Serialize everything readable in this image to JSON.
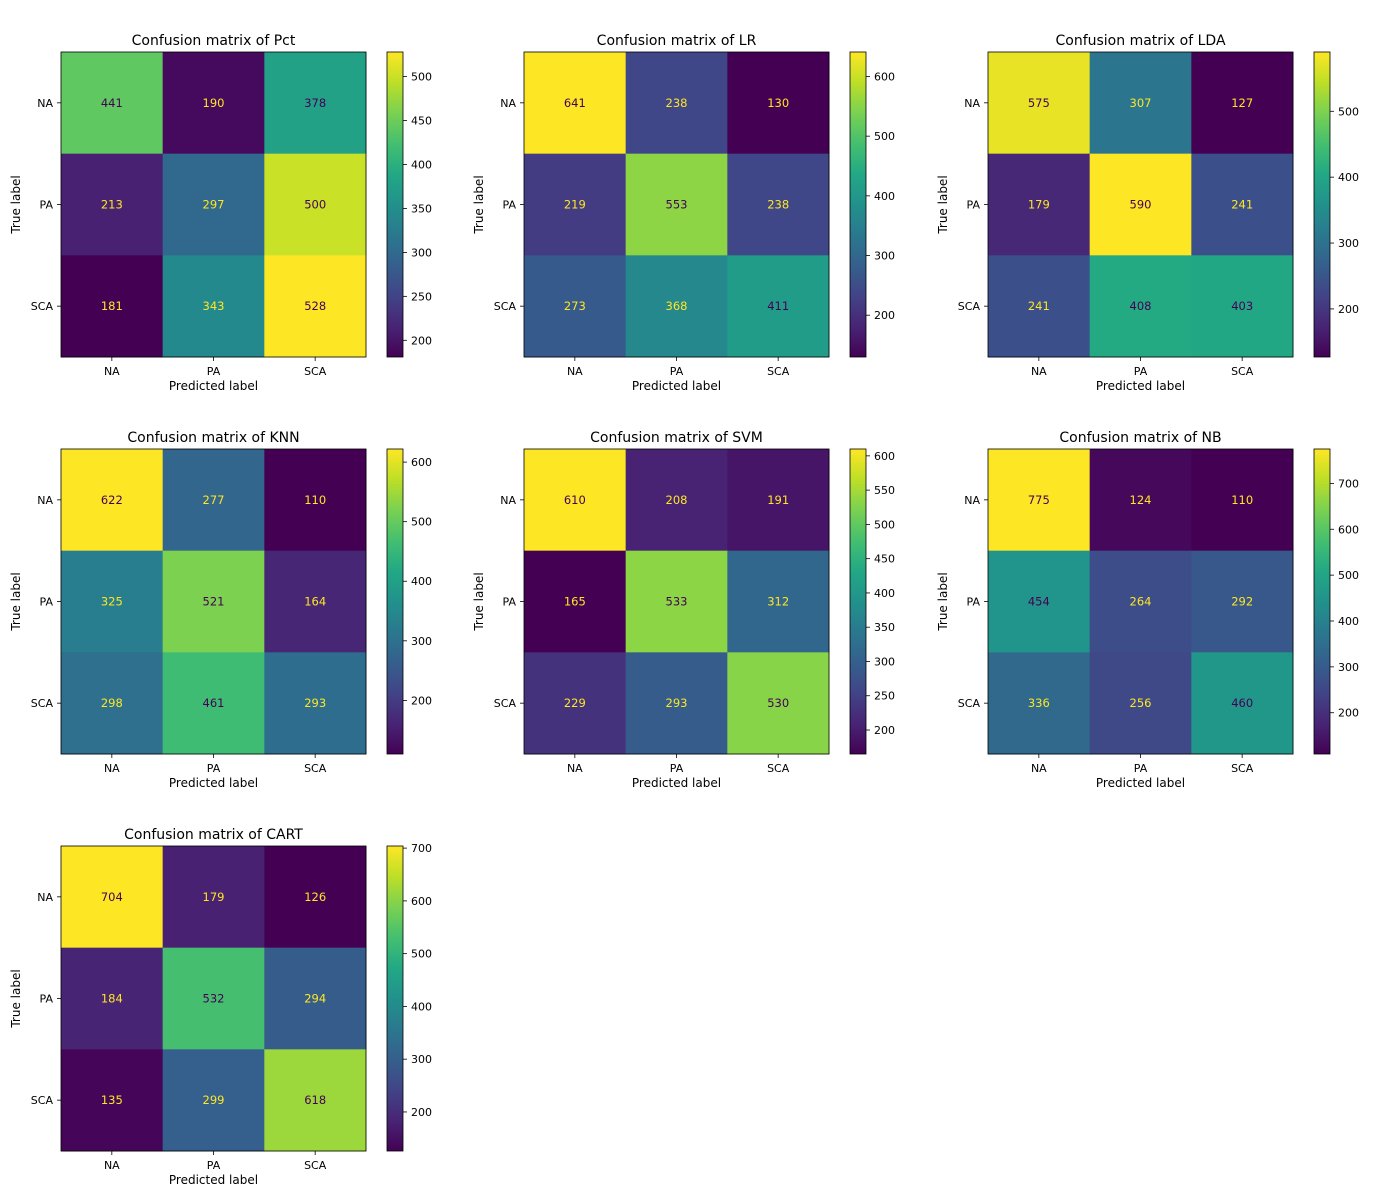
{
  "colormap": {
    "name": "viridis",
    "low_text_color": "#fde725",
    "high_text_color": "#440154"
  },
  "chart_data": [
    {
      "type": "heatmap",
      "title": "Confusion matrix of Pct",
      "xlabel": "Predicted label",
      "ylabel": "True label",
      "x_categories": [
        "NA",
        "PA",
        "SCA"
      ],
      "y_categories": [
        "NA",
        "PA",
        "SCA"
      ],
      "values": [
        [
          441,
          190,
          378
        ],
        [
          213,
          297,
          500
        ],
        [
          181,
          343,
          528
        ]
      ],
      "colorbar_range": [
        181,
        528
      ],
      "colorbar_ticks": [
        200,
        250,
        300,
        350,
        400,
        450,
        500
      ]
    },
    {
      "type": "heatmap",
      "title": "Confusion matrix of LR",
      "xlabel": "Predicted label",
      "ylabel": "True label",
      "x_categories": [
        "NA",
        "PA",
        "SCA"
      ],
      "y_categories": [
        "NA",
        "PA",
        "SCA"
      ],
      "values": [
        [
          641,
          238,
          130
        ],
        [
          219,
          553,
          238
        ],
        [
          273,
          368,
          411
        ]
      ],
      "colorbar_range": [
        130,
        641
      ],
      "colorbar_ticks": [
        200,
        300,
        400,
        500,
        600
      ]
    },
    {
      "type": "heatmap",
      "title": "Confusion matrix of LDA",
      "xlabel": "Predicted label",
      "ylabel": "True label",
      "x_categories": [
        "NA",
        "PA",
        "SCA"
      ],
      "y_categories": [
        "NA",
        "PA",
        "SCA"
      ],
      "values": [
        [
          575,
          307,
          127
        ],
        [
          179,
          590,
          241
        ],
        [
          241,
          408,
          403
        ]
      ],
      "colorbar_range": [
        127,
        590
      ],
      "colorbar_ticks": [
        200,
        300,
        400,
        500
      ]
    },
    {
      "type": "heatmap",
      "title": "Confusion matrix of KNN",
      "xlabel": "Predicted label",
      "ylabel": "True label",
      "x_categories": [
        "NA",
        "PA",
        "SCA"
      ],
      "y_categories": [
        "NA",
        "PA",
        "SCA"
      ],
      "values": [
        [
          622,
          277,
          110
        ],
        [
          325,
          521,
          164
        ],
        [
          298,
          461,
          293
        ]
      ],
      "colorbar_range": [
        110,
        622
      ],
      "colorbar_ticks": [
        200,
        300,
        400,
        500,
        600
      ]
    },
    {
      "type": "heatmap",
      "title": "Confusion matrix of SVM",
      "xlabel": "Predicted label",
      "ylabel": "True label",
      "x_categories": [
        "NA",
        "PA",
        "SCA"
      ],
      "y_categories": [
        "NA",
        "PA",
        "SCA"
      ],
      "values": [
        [
          610,
          208,
          191
        ],
        [
          165,
          533,
          312
        ],
        [
          229,
          293,
          530
        ]
      ],
      "colorbar_range": [
        165,
        610
      ],
      "colorbar_ticks": [
        200,
        250,
        300,
        350,
        400,
        450,
        500,
        550,
        600
      ]
    },
    {
      "type": "heatmap",
      "title": "Confusion matrix of NB",
      "xlabel": "Predicted label",
      "ylabel": "True label",
      "x_categories": [
        "NA",
        "PA",
        "SCA"
      ],
      "y_categories": [
        "NA",
        "PA",
        "SCA"
      ],
      "values": [
        [
          775,
          124,
          110
        ],
        [
          454,
          264,
          292
        ],
        [
          336,
          256,
          460
        ]
      ],
      "colorbar_range": [
        110,
        775
      ],
      "colorbar_ticks": [
        200,
        300,
        400,
        500,
        600,
        700
      ]
    },
    {
      "type": "heatmap",
      "title": "Confusion matrix of CART",
      "xlabel": "Predicted label",
      "ylabel": "True label",
      "x_categories": [
        "NA",
        "PA",
        "SCA"
      ],
      "y_categories": [
        "NA",
        "PA",
        "SCA"
      ],
      "values": [
        [
          704,
          179,
          126
        ],
        [
          184,
          532,
          294
        ],
        [
          135,
          299,
          618
        ]
      ],
      "colorbar_range": [
        126,
        704
      ],
      "colorbar_ticks": [
        200,
        300,
        400,
        500,
        600,
        700
      ]
    }
  ]
}
